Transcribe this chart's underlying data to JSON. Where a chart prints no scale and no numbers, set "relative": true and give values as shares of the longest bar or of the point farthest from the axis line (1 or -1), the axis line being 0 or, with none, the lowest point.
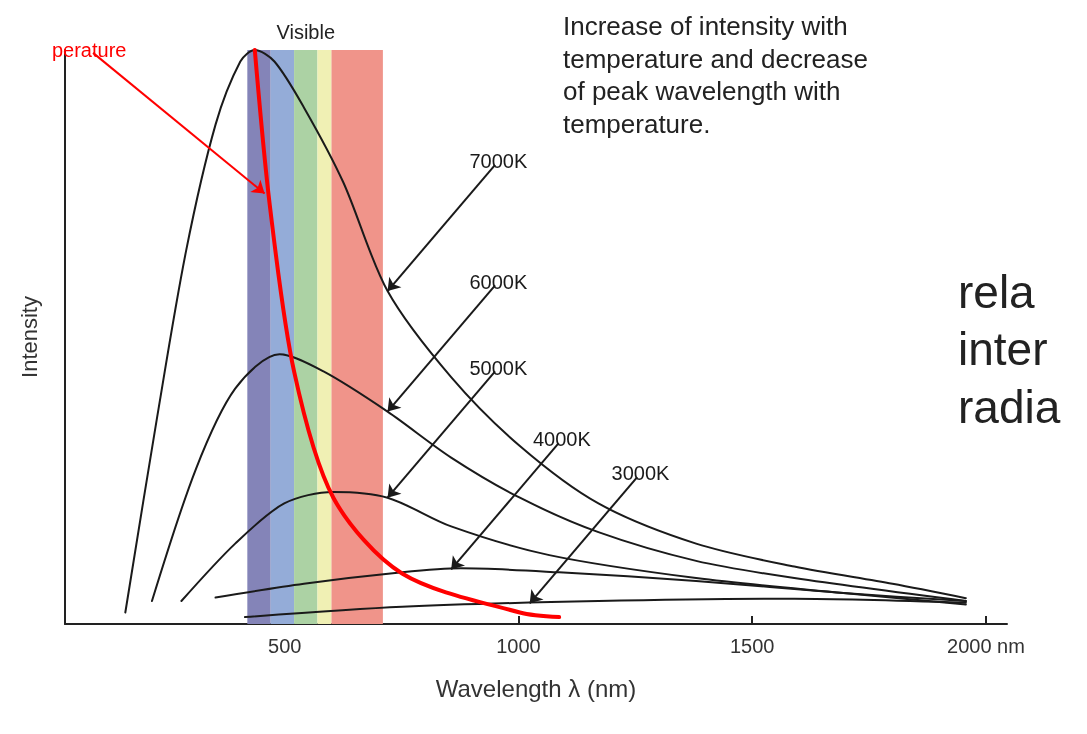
{
  "chart_data": {
    "type": "line",
    "relative": true,
    "xlabel": "Wavelength λ (nm)",
    "ylabel": "Intensity",
    "xlim": [
      30,
      2045
    ],
    "xticks": [
      500,
      1000,
      1500,
      {
        "value": 2000,
        "label": "2000 nm"
      }
    ],
    "grid": false,
    "marker": "none",
    "line_style": "solid",
    "series": [
      {
        "color": "#1a1a1a",
        "x": [
          159,
          227,
          289,
          352,
          405,
          436,
          478,
          541,
          625,
          720,
          856,
          1003,
          1171,
          1380,
          1590,
          1800,
          1957
        ],
        "values": [
          0.02,
          0.36,
          0.65,
          0.87,
          0.98,
          1.0,
          0.98,
          0.9,
          0.77,
          0.58,
          0.43,
          0.31,
          0.21,
          0.14,
          0.1,
          0.07,
          0.045
        ]
      },
      {
        "color": "#1a1a1a",
        "x": [
          216,
          310,
          394,
          489,
          583,
          720,
          856,
          1003,
          1171,
          1380,
          1590,
          1957
        ],
        "values": [
          0.04,
          0.27,
          0.41,
          0.47,
          0.44,
          0.37,
          0.29,
          0.22,
          0.16,
          0.11,
          0.08,
          0.04
        ]
      },
      {
        "color": "#1a1a1a",
        "x": [
          279,
          394,
          499,
          604,
          720,
          856,
          1066,
          1380,
          1695,
          1957
        ],
        "values": [
          0.04,
          0.14,
          0.21,
          0.23,
          0.22,
          0.17,
          0.12,
          0.08,
          0.054,
          0.034
        ]
      },
      {
        "color": "#1a1a1a",
        "x": [
          352,
          541,
          751,
          877,
          1087,
          1380,
          1695,
          1957
        ],
        "values": [
          0.046,
          0.07,
          0.09,
          0.097,
          0.09,
          0.075,
          0.054,
          0.04
        ]
      },
      {
        "color": "#1a1a1a",
        "x": [
          415,
          751,
          1171,
          1590,
          1957
        ],
        "values": [
          0.012,
          0.03,
          0.04,
          0.044,
          0.037
        ]
      },
      {
        "color": "#ff0000",
        "x": [
          436,
          468,
          520,
          604,
          751,
          1003,
          1087
        ],
        "values": [
          1.0,
          0.73,
          0.44,
          0.22,
          0.088,
          0.02,
          0.012
        ]
      }
    ],
    "bands": [
      {
        "axis": "x",
        "from": 420,
        "to": 470,
        "label": null,
        "color": "#8484b8"
      },
      {
        "axis": "x",
        "from": 470,
        "to": 520,
        "label": null,
        "color": "#94acd8"
      },
      {
        "axis": "x",
        "from": 520,
        "to": 570,
        "label": "Visible",
        "color": "#acd2a4"
      },
      {
        "axis": "x",
        "from": 570,
        "to": 600,
        "label": null,
        "color": "#f0f0b4"
      },
      {
        "axis": "x",
        "from": 600,
        "to": 710,
        "label": null,
        "color": "#f0948a"
      }
    ],
    "annotations": [
      "Increase of intensity with\ntemperature and decrease\nof peak wavelength with\ntemperature.",
      "rela\ninter\nradia",
      {
        "text": "7000K",
        "x": 720,
        "y": 0.58
      },
      {
        "text": "6000K",
        "x": 720,
        "y": 0.37
      },
      {
        "text": "5000K",
        "x": 720,
        "y": 0.22
      },
      {
        "text": "4000K",
        "x": 856,
        "y": 0.095
      },
      {
        "text": "3000K",
        "x": 1024,
        "y": 0.036
      },
      {
        "text": "perature",
        "x": 457,
        "y": 0.75
      }
    ]
  }
}
